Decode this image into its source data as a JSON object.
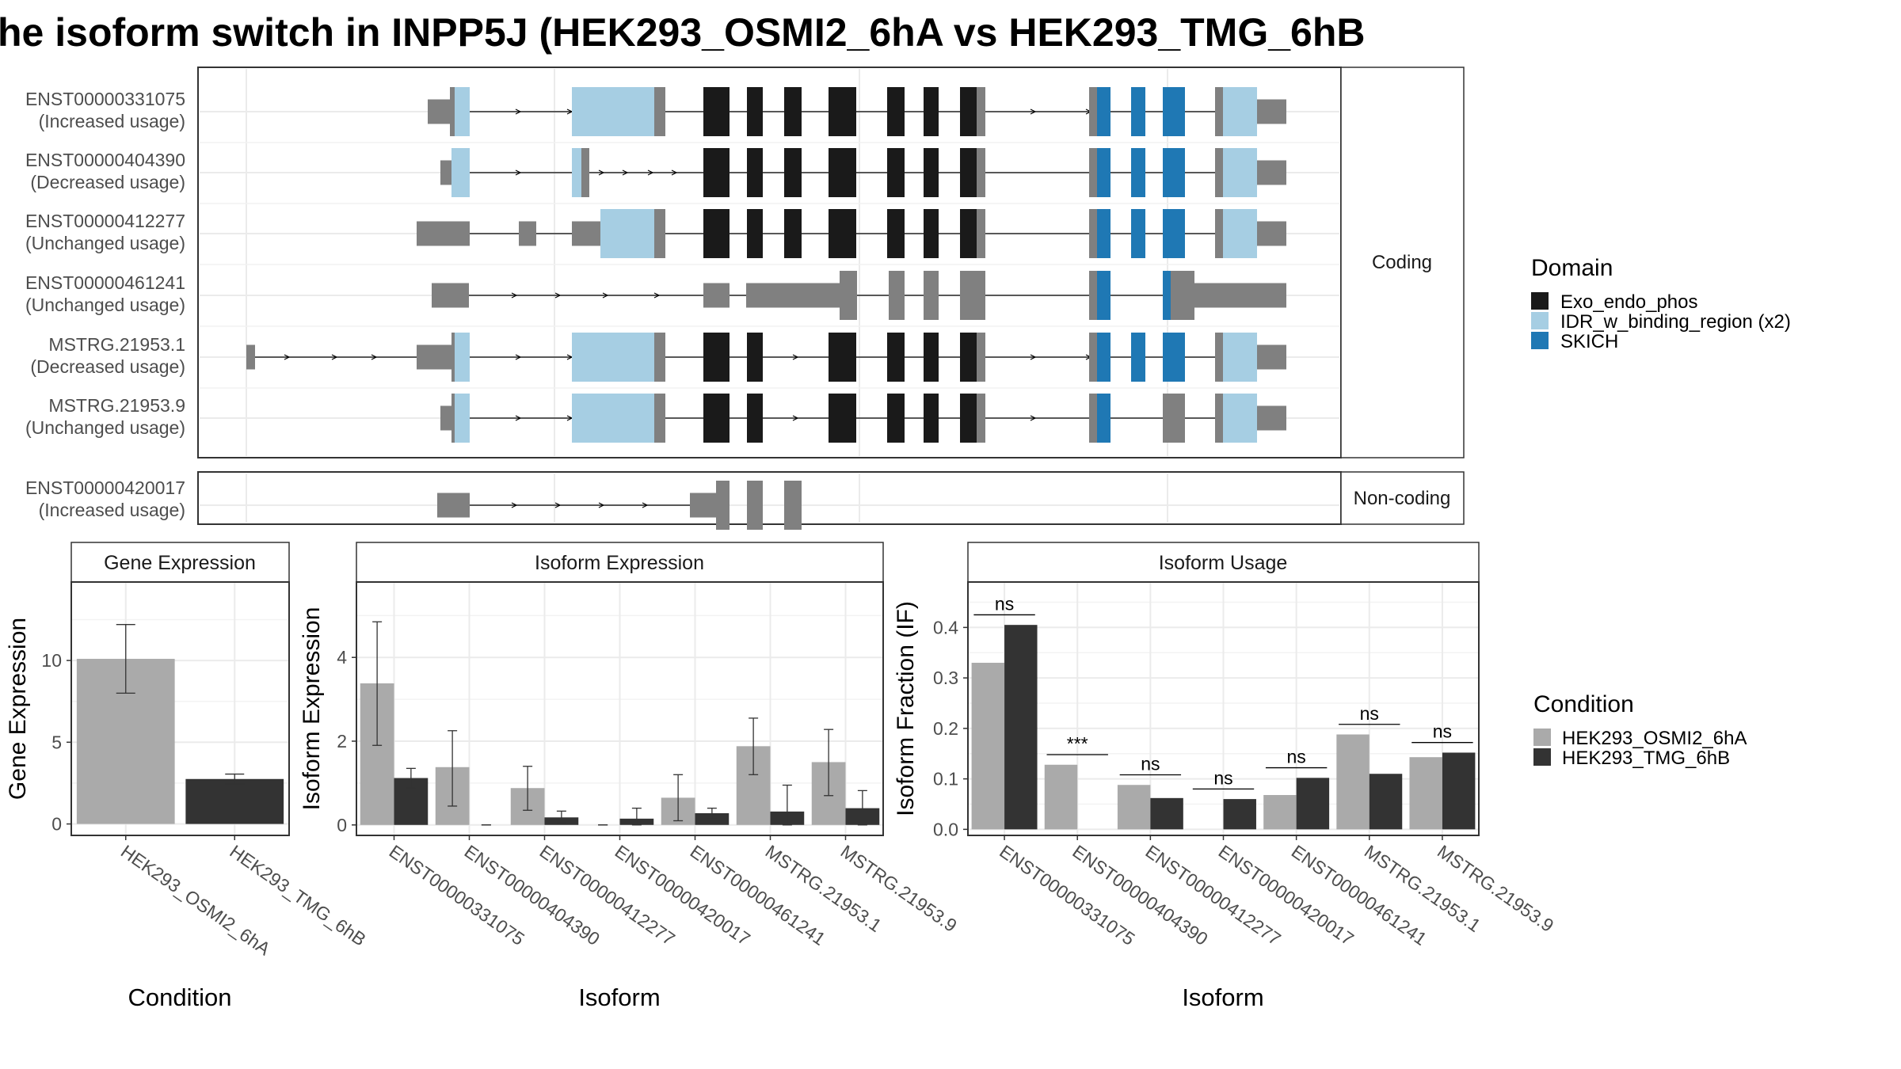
{
  "title": "he isoform switch in INPP5J (HEK293_OSMI2_6hA vs HEK293_TMG_6hB",
  "colors": {
    "exo": "#1a1a1a",
    "idr": "#a6cee3",
    "skich": "#1f78b4",
    "intron_exon": "#808080",
    "cond_a": "#aaaaaa",
    "cond_b": "#333333",
    "strip_bg": "#ffffff",
    "grid": "#ebebeb"
  },
  "structure": {
    "facets": {
      "coding": "Coding",
      "noncoding": "Non-coding"
    },
    "transcripts": [
      {
        "id": "ENST00000331075",
        "usage": "(Increased usage)",
        "facet": "coding"
      },
      {
        "id": "ENST00000404390",
        "usage": "(Decreased usage)",
        "facet": "coding"
      },
      {
        "id": "ENST00000412277",
        "usage": "(Unchanged usage)",
        "facet": "coding"
      },
      {
        "id": "ENST00000461241",
        "usage": "(Unchanged usage)",
        "facet": "coding"
      },
      {
        "id": "MSTRG.21953.1",
        "usage": "(Decreased usage)",
        "facet": "coding"
      },
      {
        "id": "MSTRG.21953.9",
        "usage": "(Unchanged usage)",
        "facet": "coding"
      },
      {
        "id": "ENST00000420017",
        "usage": "(Increased usage)",
        "facet": "noncoding"
      }
    ],
    "domain_legend": {
      "title": "Domain",
      "items": [
        {
          "label": "Exo_endo_phos",
          "color_key": "exo"
        },
        {
          "label": "IDR_w_binding_region (x2)",
          "color_key": "idr"
        },
        {
          "label": "SKICH",
          "color_key": "skich"
        }
      ]
    }
  },
  "chart_data": [
    {
      "type": "bar",
      "title": "Gene Expression",
      "xlabel": "Condition",
      "ylabel": "Gene Expression",
      "categories": [
        "HEK293_OSMI2_6hA",
        "HEK293_TMG_6hB"
      ],
      "values": [
        10.1,
        2.75
      ],
      "errors": [
        [
          8.0,
          12.2
        ],
        [
          2.45,
          3.05
        ]
      ],
      "yticks": [
        0,
        5,
        10
      ],
      "ylim": [
        -0.7,
        14.8
      ],
      "grid": true
    },
    {
      "type": "bar",
      "title": "Isoform Expression",
      "xlabel": "Isoform",
      "ylabel": "Isoform Expression",
      "categories": [
        "ENST00000331075",
        "ENST00000404390",
        "ENST00000412277",
        "ENST00000420017",
        "ENST00000461241",
        "MSTRG.21953.1",
        "MSTRG.21953.9"
      ],
      "series": [
        {
          "name": "HEK293_OSMI2_6hA",
          "values": [
            3.38,
            1.38,
            0.88,
            0.0,
            0.65,
            1.88,
            1.5
          ],
          "errors": [
            [
              1.9,
              4.85
            ],
            [
              0.45,
              2.25
            ],
            [
              0.35,
              1.4
            ],
            [
              0.0,
              0.0
            ],
            [
              0.1,
              1.2
            ],
            [
              1.2,
              2.55
            ],
            [
              0.7,
              2.28
            ]
          ]
        },
        {
          "name": "HEK293_TMG_6hB",
          "values": [
            1.12,
            0.0,
            0.18,
            0.15,
            0.28,
            0.32,
            0.4
          ],
          "errors": [
            [
              0.88,
              1.35
            ],
            [
              0.0,
              0.0
            ],
            [
              0.05,
              0.33
            ],
            [
              0.0,
              0.4
            ],
            [
              0.15,
              0.4
            ],
            [
              0.0,
              0.95
            ],
            [
              0.0,
              0.82
            ]
          ]
        }
      ],
      "yticks": [
        0,
        2,
        4
      ],
      "ylim": [
        -0.25,
        5.8
      ],
      "grid": true
    },
    {
      "type": "bar",
      "title": "Isoform Usage",
      "xlabel": "Isoform",
      "ylabel": "Isoform Fraction (IF)",
      "categories": [
        "ENST00000331075",
        "ENST00000404390",
        "ENST00000412277",
        "ENST00000420017",
        "ENST00000461241",
        "MSTRG.21953.1",
        "MSTRG.21953.9"
      ],
      "series": [
        {
          "name": "HEK293_OSMI2_6hA",
          "values": [
            0.33,
            0.128,
            0.088,
            0.0,
            0.068,
            0.188,
            0.143
          ]
        },
        {
          "name": "HEK293_TMG_6hB",
          "values": [
            0.405,
            0.0,
            0.062,
            0.06,
            0.102,
            0.11,
            0.152
          ]
        }
      ],
      "annotations": [
        "ns",
        "***",
        "ns",
        "ns",
        "ns",
        "ns",
        "ns"
      ],
      "annotation_heights": [
        0.425,
        0.148,
        0.108,
        0.08,
        0.122,
        0.208,
        0.172
      ],
      "yticks": [
        0.0,
        0.1,
        0.2,
        0.3,
        0.4
      ],
      "ylim": [
        -0.012,
        0.49
      ],
      "grid": true
    }
  ],
  "condition_legend": {
    "title": "Condition",
    "items": [
      {
        "label": "HEK293_OSMI2_6hA",
        "color_key": "cond_a"
      },
      {
        "label": "HEK293_TMG_6hB",
        "color_key": "cond_b"
      }
    ]
  }
}
